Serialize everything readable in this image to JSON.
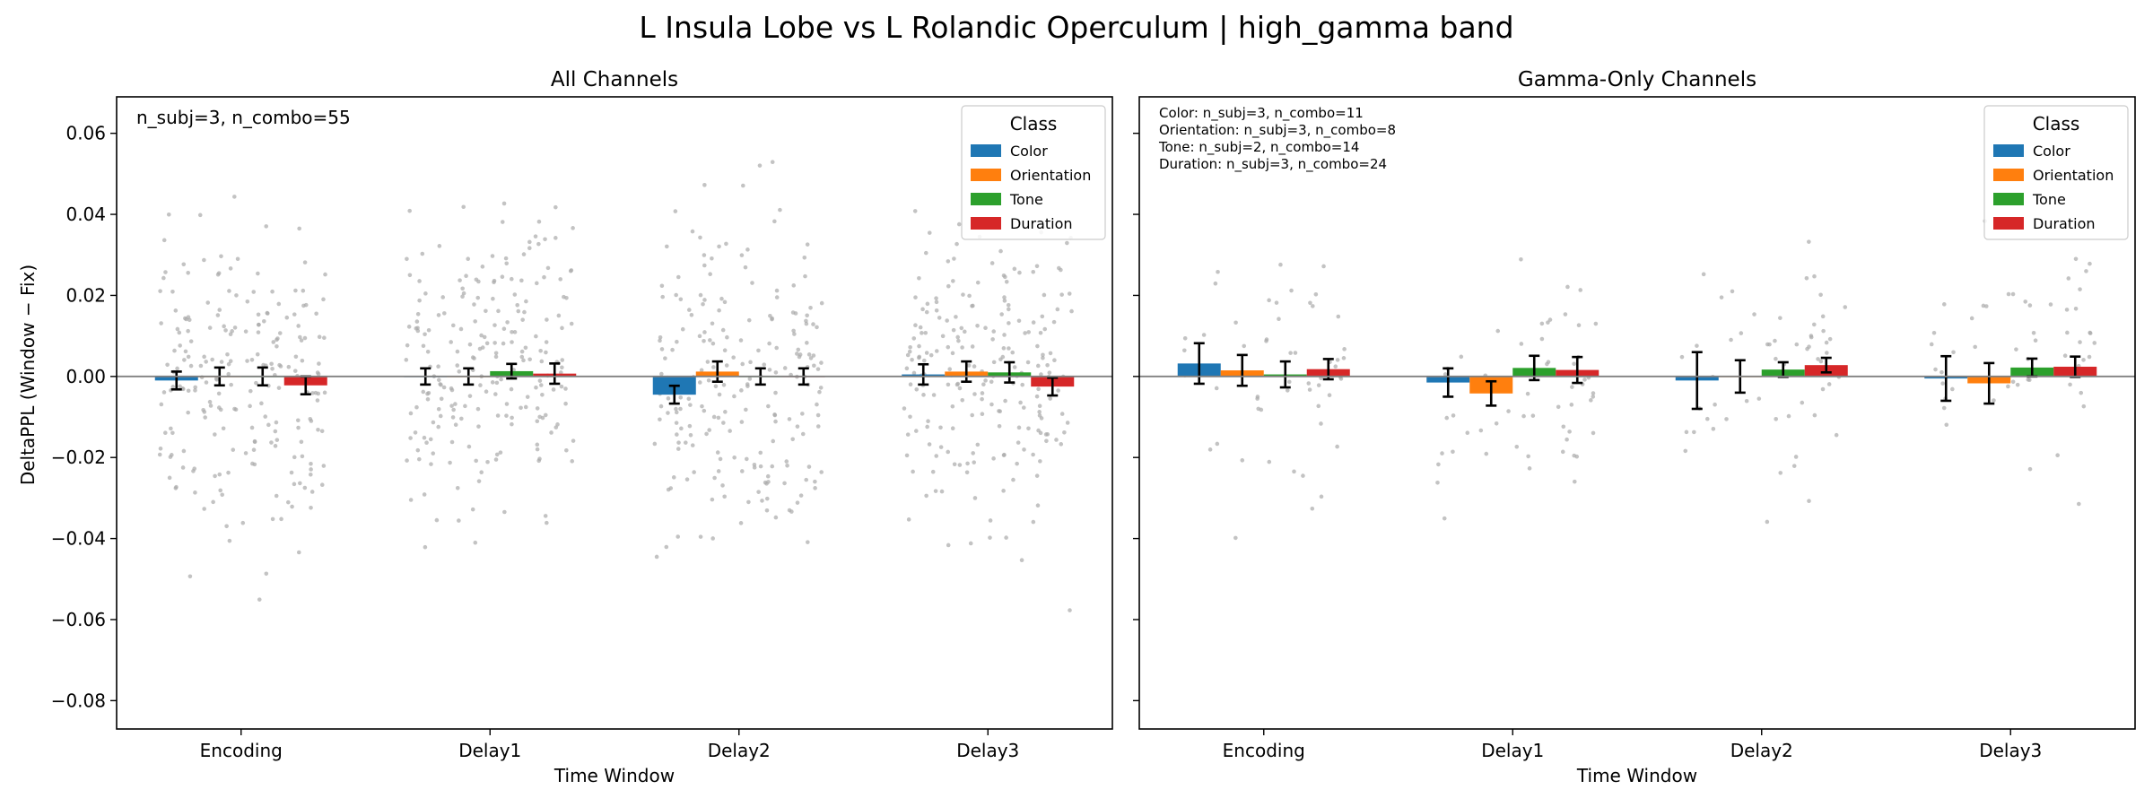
{
  "figure": {
    "title": "L Insula Lobe vs L Rolandic Operculum  |  high_gamma band",
    "ylabel": "DeltaPPL (Window − Fix)",
    "xlabel": "Time Window"
  },
  "colors": {
    "Color": "#1f77b4",
    "Orientation": "#ff7f0e",
    "Tone": "#2ca02c",
    "Duration": "#d62728",
    "points": "#a9a9a9",
    "zero_line": "#808080"
  },
  "chart_data": [
    {
      "type": "bar",
      "title": "All Channels",
      "xlabel": "Time Window",
      "ylabel": "DeltaPPL (Window − Fix)",
      "categories": [
        "Encoding",
        "Delay1",
        "Delay2",
        "Delay3"
      ],
      "ylim": [
        -0.087,
        0.069
      ],
      "yticks": [
        -0.08,
        -0.06,
        -0.04,
        -0.02,
        0.0,
        0.02,
        0.04,
        0.06
      ],
      "ytick_labels": [
        "−0.08",
        "−0.06",
        "−0.04",
        "−0.02",
        "0.00",
        "0.02",
        "0.04",
        "0.06"
      ],
      "grid": false,
      "legend": {
        "title": "Class",
        "placement": "top-right"
      },
      "annotation": [
        "n_subj=3, n_combo=55"
      ],
      "series": [
        {
          "name": "Color",
          "values": [
            -0.001,
            0.0,
            -0.0045,
            0.0005
          ],
          "errors": [
            0.0022,
            0.002,
            0.0022,
            0.0025
          ]
        },
        {
          "name": "Orientation",
          "values": [
            0.0,
            0.0,
            0.0012,
            0.0012
          ],
          "errors": [
            0.0022,
            0.002,
            0.0025,
            0.0025
          ]
        },
        {
          "name": "Tone",
          "values": [
            0.0,
            0.0013,
            0.0,
            0.001
          ],
          "errors": [
            0.0022,
            0.0018,
            0.002,
            0.0025
          ]
        },
        {
          "name": "Duration",
          "values": [
            -0.0022,
            0.0007,
            0.0,
            -0.0025
          ],
          "errors": [
            0.0022,
            0.0025,
            0.002,
            0.0022
          ]
        }
      ],
      "scatter_points": 55
    },
    {
      "type": "bar",
      "title": "Gamma-Only Channels",
      "xlabel": "Time Window",
      "ylabel": "",
      "categories": [
        "Encoding",
        "Delay1",
        "Delay2",
        "Delay3"
      ],
      "ylim": [
        -0.087,
        0.069
      ],
      "yticks": [
        -0.08,
        -0.06,
        -0.04,
        -0.02,
        0.0,
        0.02,
        0.04,
        0.06
      ],
      "ytick_labels": [
        "",
        "",
        "",
        "",
        "",
        "",
        "",
        ""
      ],
      "grid": false,
      "legend": {
        "title": "Class",
        "placement": "top-right"
      },
      "annotation": [
        "Color: n_subj=3, n_combo=11",
        "Orientation: n_subj=3, n_combo=8",
        "Tone: n_subj=2, n_combo=14",
        "Duration: n_subj=3, n_combo=24"
      ],
      "series": [
        {
          "name": "Color",
          "values": [
            0.0032,
            -0.0015,
            -0.001,
            -0.0005
          ],
          "errors": [
            0.005,
            0.0035,
            0.007,
            0.0055
          ]
        },
        {
          "name": "Orientation",
          "values": [
            0.0015,
            -0.0042,
            0.0,
            -0.0017
          ],
          "errors": [
            0.0038,
            0.003,
            0.004,
            0.005
          ]
        },
        {
          "name": "Tone",
          "values": [
            0.0005,
            0.0021,
            0.0017,
            0.0022
          ],
          "errors": [
            0.0032,
            0.003,
            0.0018,
            0.0022
          ]
        },
        {
          "name": "Duration",
          "values": [
            0.0018,
            0.0016,
            0.0028,
            0.0024
          ],
          "errors": [
            0.0025,
            0.0032,
            0.0018,
            0.0025
          ]
        }
      ],
      "scatter_points": [
        11,
        8,
        14,
        24
      ]
    }
  ]
}
